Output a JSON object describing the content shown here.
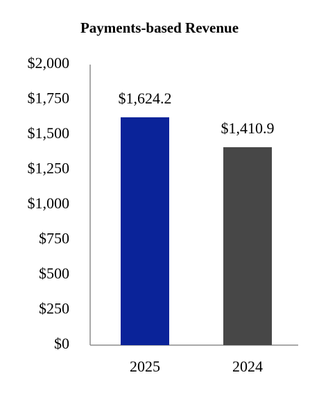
{
  "chart_data": {
    "type": "bar",
    "title": "Payments-based Revenue",
    "categories": [
      "2025",
      "2024"
    ],
    "values": [
      1624.2,
      1410.9
    ],
    "value_labels": [
      "$1,624.2",
      "$1,410.9"
    ],
    "colors": [
      "#0a2399",
      "#474747"
    ],
    "ylim": [
      0,
      2000
    ],
    "yticks": [
      {
        "value": 0,
        "label": "$0"
      },
      {
        "value": 250,
        "label": "$250"
      },
      {
        "value": 500,
        "label": "$500"
      },
      {
        "value": 750,
        "label": "$750"
      },
      {
        "value": 1000,
        "label": "$1,000"
      },
      {
        "value": 1250,
        "label": "$1,250"
      },
      {
        "value": 1500,
        "label": "$1,500"
      },
      {
        "value": 1750,
        "label": "$1,750"
      },
      {
        "value": 2000,
        "label": "$2,000"
      }
    ],
    "grid": false
  }
}
